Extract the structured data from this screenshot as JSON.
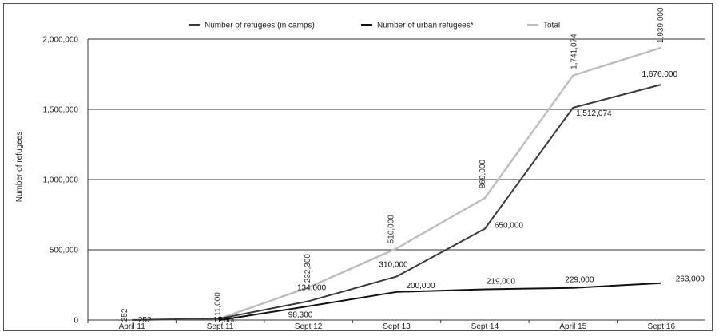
{
  "chart_data": {
    "type": "line",
    "title": "",
    "xlabel": "",
    "ylabel": "Number of refugees",
    "ylim": [
      0,
      2000000
    ],
    "y_ticks": [
      "0",
      "500,000",
      "1,000,000",
      "1,500,000",
      "2,000,000"
    ],
    "grid": "horizontal",
    "legend_position": "top",
    "categories": [
      "April 11",
      "Sept 11",
      "Sept 12",
      "Sept 13",
      "Sept 14",
      "April 15",
      "Sept 16"
    ],
    "series": [
      {
        "name": "Number of refugees (in camps)",
        "color": "#3a3a3a",
        "values": [
          252,
          11000,
          134000,
          310000,
          650000,
          1512074,
          1676000
        ],
        "labels": [
          "252",
          "11,000",
          "134,000",
          "310,000",
          "650,000",
          "1,512,074",
          "1,676,000"
        ]
      },
      {
        "name": "Number of urban refugees*",
        "color": "#111111",
        "values": [
          0,
          0,
          98300,
          200000,
          219000,
          229000,
          263000
        ],
        "labels": [
          "",
          "",
          "98,300",
          "200,000",
          "219,000",
          "229,000",
          "263,000"
        ]
      },
      {
        "name": "Total",
        "color": "#bdbdbd",
        "values": [
          252,
          11000,
          232300,
          510000,
          869000,
          1741074,
          1939000
        ],
        "labels": [
          "252",
          "11,000",
          "232,300",
          "510,000",
          "869,000",
          "1,741,074",
          "1,939,000"
        ]
      }
    ]
  }
}
